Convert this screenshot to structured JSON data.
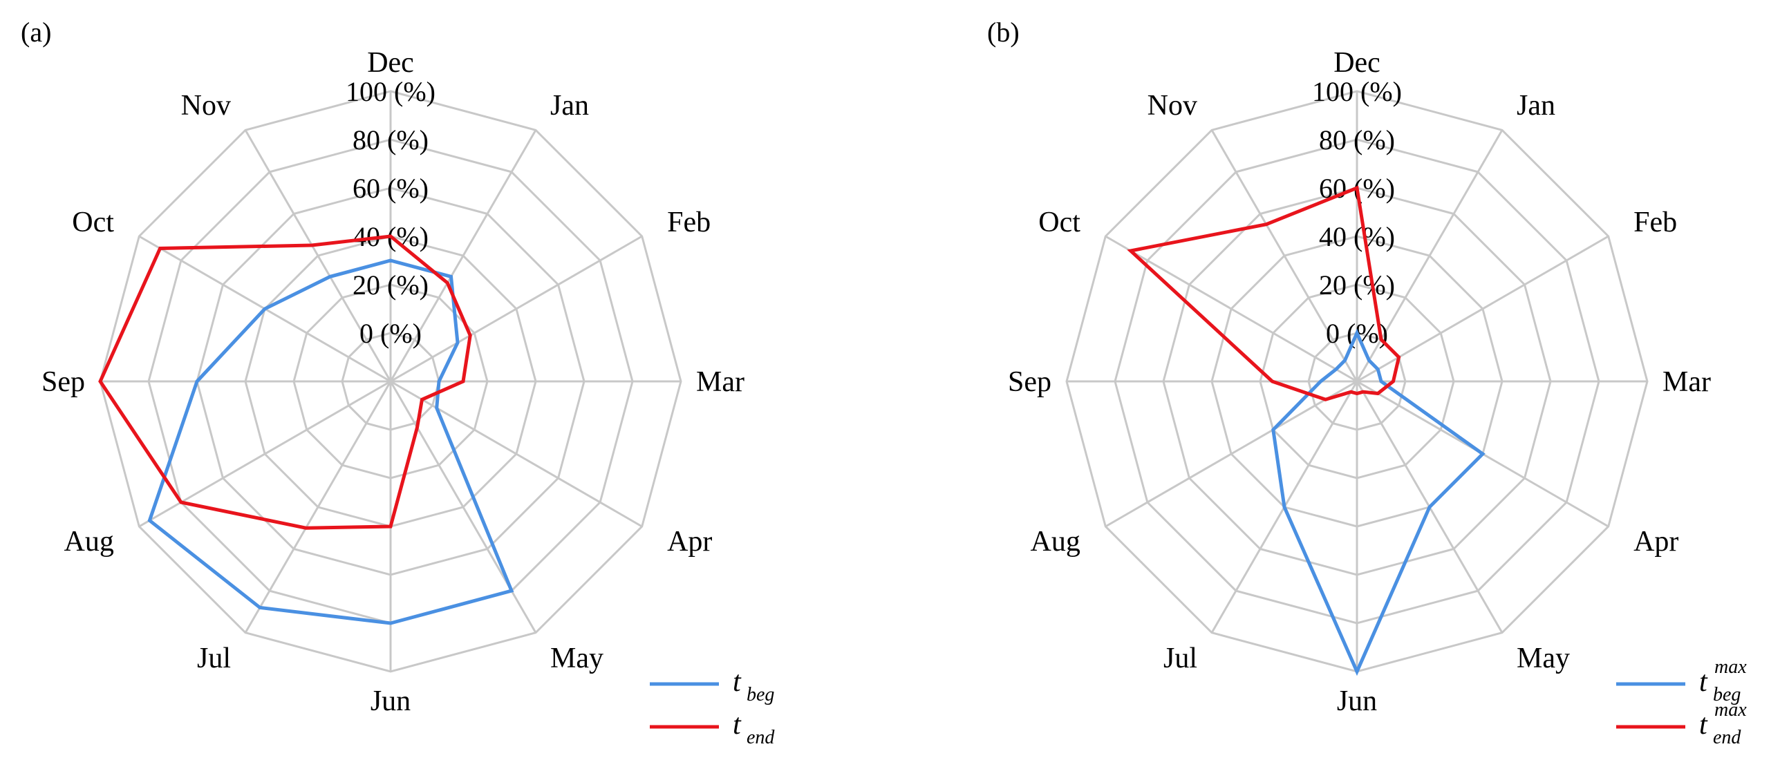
{
  "chart_data": [
    {
      "type": "radar",
      "panel_label": "(a)",
      "categories": [
        "Dec",
        "Jan",
        "Feb",
        "Mar",
        "Apr",
        "May",
        "Jun",
        "Jul",
        "Aug",
        "Sep",
        "Oct",
        "Nov"
      ],
      "radial_ticks": [
        "0 (%)",
        "20 (%)",
        "40 (%)",
        "60 (%)",
        "80 (%)",
        "100 (%)"
      ],
      "rlim": [
        -20,
        100
      ],
      "grid": true,
      "legend_position": "bottom-right",
      "series": [
        {
          "name": "t",
          "name_sub": "beg",
          "name_sup": "",
          "color": "#4a90e2",
          "values": [
            30,
            30,
            12,
            0,
            2,
            80,
            80,
            88,
            95,
            60,
            40,
            30
          ]
        },
        {
          "name": "t",
          "name_sub": "end",
          "name_sup": "",
          "color": "#e8141c",
          "values": [
            40,
            27,
            18,
            10,
            -5,
            2,
            40,
            50,
            80,
            100,
            90,
            45
          ]
        }
      ]
    },
    {
      "type": "radar",
      "panel_label": "(b)",
      "categories": [
        "Dec",
        "Jan",
        "Feb",
        "Mar",
        "Apr",
        "May",
        "Jun",
        "Jul",
        "Aug",
        "Sep",
        "Oct",
        "Nov"
      ],
      "radial_ticks": [
        "0 (%)",
        "20 (%)",
        "40 (%)",
        "60 (%)",
        "80 (%)",
        "100 (%)"
      ],
      "rlim": [
        -20,
        100
      ],
      "grid": true,
      "legend_position": "bottom-right",
      "series": [
        {
          "name": "t",
          "name_sub": "beg",
          "name_sup": "max",
          "color": "#4a90e2",
          "values": [
            0,
            -10,
            -10,
            -10,
            40,
            40,
            100,
            40,
            20,
            -5,
            -10,
            -10
          ]
        },
        {
          "name": "t",
          "name_sub": "end",
          "name_sup": "max",
          "color": "#e8141c",
          "values": [
            60,
            0,
            0,
            -5,
            -10,
            -15,
            -15,
            -15,
            -5,
            15,
            88,
            55
          ]
        }
      ]
    }
  ]
}
